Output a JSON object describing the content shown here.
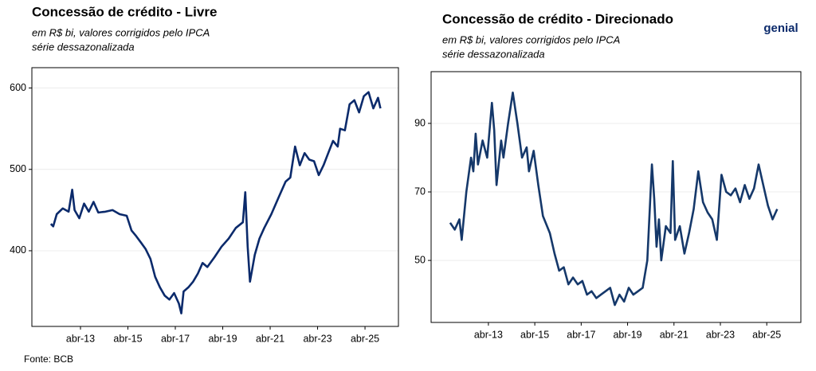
{
  "chart_data": [
    {
      "type": "line",
      "title": "Concessão de crédito - Livre",
      "subtitle": [
        "em R$ bi, valores corrigidos pelo IPCA",
        "série dessazonalizada"
      ],
      "xlim": [
        2011.2,
        2026.66
      ],
      "ylim": [
        307,
        625
      ],
      "xticks": [
        {
          "value": 2013.25,
          "label": "abr-13"
        },
        {
          "value": 2015.25,
          "label": "abr-15"
        },
        {
          "value": 2017.25,
          "label": "abr-17"
        },
        {
          "value": 2019.25,
          "label": "abr-19"
        },
        {
          "value": 2021.25,
          "label": "abr-21"
        },
        {
          "value": 2023.25,
          "label": "abr-23"
        },
        {
          "value": 2025.25,
          "label": "abr-25"
        }
      ],
      "yticks": [
        400,
        500,
        600
      ],
      "grid": true,
      "series": [
        {
          "color": "#0b2a6b",
          "x": [
            2012.0,
            2012.1,
            2012.25,
            2012.5,
            2012.75,
            2012.9,
            2013.0,
            2013.2,
            2013.4,
            2013.6,
            2013.8,
            2014.0,
            2014.3,
            2014.6,
            2014.9,
            2015.2,
            2015.4,
            2015.6,
            2015.8,
            2016.0,
            2016.2,
            2016.4,
            2016.6,
            2016.8,
            2017.0,
            2017.2,
            2017.4,
            2017.5,
            2017.6,
            2017.8,
            2018.0,
            2018.2,
            2018.4,
            2018.6,
            2018.9,
            2019.2,
            2019.5,
            2019.8,
            2020.1,
            2020.2,
            2020.3,
            2020.4,
            2020.6,
            2020.8,
            2021.0,
            2021.3,
            2021.6,
            2021.9,
            2022.1,
            2022.3,
            2022.5,
            2022.7,
            2022.9,
            2023.1,
            2023.3,
            2023.5,
            2023.7,
            2023.9,
            2024.1,
            2024.2,
            2024.4,
            2024.6,
            2024.8,
            2025.0,
            2025.2,
            2025.4,
            2025.6,
            2025.8,
            2025.9
          ],
          "values": [
            433,
            430,
            445,
            452,
            448,
            475,
            450,
            440,
            458,
            448,
            460,
            447,
            448,
            450,
            445,
            443,
            425,
            418,
            410,
            402,
            390,
            368,
            355,
            345,
            340,
            348,
            335,
            323,
            350,
            355,
            362,
            372,
            385,
            380,
            392,
            405,
            415,
            428,
            435,
            472,
            405,
            362,
            395,
            415,
            428,
            445,
            465,
            485,
            490,
            528,
            505,
            520,
            512,
            510,
            493,
            505,
            520,
            535,
            528,
            550,
            548,
            580,
            585,
            570,
            590,
            595,
            575,
            588,
            575
          ]
        }
      ]
    },
    {
      "type": "line",
      "title": "Concessão de crédito - Direcionado",
      "subtitle": [
        "em R$ bi, valores corrigidos pelo IPCA",
        "série dessazonalizada"
      ],
      "xlim": [
        2010.78,
        2026.72
      ],
      "ylim": [
        31.9,
        105.1
      ],
      "xticks": [
        {
          "value": 2013.25,
          "label": "abr-13"
        },
        {
          "value": 2015.25,
          "label": "abr-15"
        },
        {
          "value": 2017.25,
          "label": "abr-17"
        },
        {
          "value": 2019.25,
          "label": "abr-19"
        },
        {
          "value": 2021.25,
          "label": "abr-21"
        },
        {
          "value": 2023.25,
          "label": "abr-23"
        },
        {
          "value": 2025.25,
          "label": "abr-25"
        }
      ],
      "yticks": [
        50,
        70,
        90
      ],
      "grid": true,
      "series": [
        {
          "color": "#15386a",
          "x": [
            2011.6,
            2011.8,
            2012.0,
            2012.1,
            2012.3,
            2012.5,
            2012.6,
            2012.7,
            2012.8,
            2013.0,
            2013.2,
            2013.4,
            2013.5,
            2013.6,
            2013.8,
            2013.9,
            2014.1,
            2014.3,
            2014.5,
            2014.7,
            2014.9,
            2015.0,
            2015.2,
            2015.4,
            2015.6,
            2015.9,
            2016.1,
            2016.3,
            2016.5,
            2016.7,
            2016.9,
            2017.1,
            2017.3,
            2017.5,
            2017.7,
            2017.9,
            2018.1,
            2018.3,
            2018.5,
            2018.7,
            2018.9,
            2019.1,
            2019.3,
            2019.5,
            2019.7,
            2019.9,
            2020.1,
            2020.3,
            2020.4,
            2020.5,
            2020.6,
            2020.7,
            2020.9,
            2021.1,
            2021.2,
            2021.3,
            2021.5,
            2021.7,
            2021.9,
            2022.1,
            2022.3,
            2022.5,
            2022.7,
            2022.9,
            2023.1,
            2023.3,
            2023.5,
            2023.7,
            2023.9,
            2024.1,
            2024.3,
            2024.5,
            2024.7,
            2024.9,
            2025.1,
            2025.3,
            2025.5,
            2025.7
          ],
          "values": [
            61,
            59,
            62,
            56,
            70,
            80,
            76,
            87,
            78,
            85,
            80,
            96,
            88,
            72,
            85,
            80,
            90,
            99,
            90,
            80,
            83,
            76,
            82,
            72,
            63,
            58,
            52,
            47,
            48,
            43,
            45,
            43,
            44,
            40,
            41,
            39,
            40,
            41,
            42,
            37,
            40,
            38,
            42,
            40,
            41,
            42,
            50,
            78,
            68,
            54,
            62,
            50,
            60,
            58,
            79,
            56,
            60,
            52,
            58,
            65,
            76,
            67,
            64,
            62,
            56,
            75,
            70,
            69,
            71,
            67,
            72,
            68,
            71,
            78,
            72,
            66,
            62,
            65
          ]
        }
      ]
    }
  ],
  "source": "Fonte: BCB",
  "logo": "genial"
}
